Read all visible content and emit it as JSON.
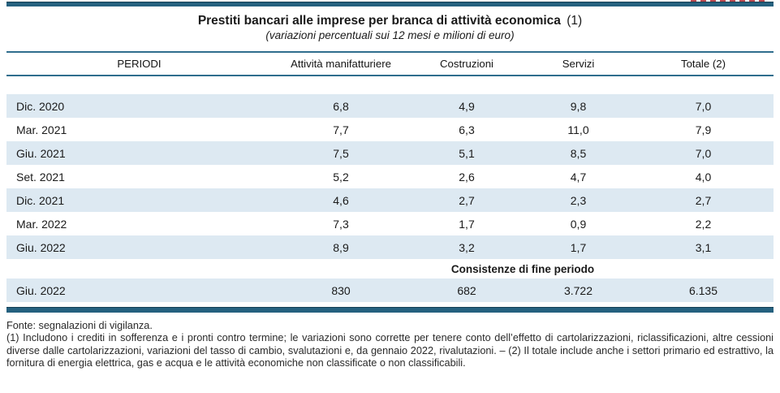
{
  "header": {
    "title": "Prestiti bancari alle imprese per branca di attività economica",
    "title_note_ref": "(1)",
    "subtitle": "(variazioni percentuali sui 12 mesi e milioni di euro)"
  },
  "table": {
    "columns": [
      "PERIODI",
      "Attività manifatturiere",
      "Costruzioni",
      "Servizi",
      "Totale (2)"
    ],
    "rows": [
      {
        "period": "Dic. 2020",
        "values": [
          "6,8",
          "4,9",
          "9,8",
          "7,0"
        ]
      },
      {
        "period": "Mar. 2021",
        "values": [
          "7,7",
          "6,3",
          "11,0",
          "7,9"
        ]
      },
      {
        "period": "Giu. 2021",
        "values": [
          "7,5",
          "5,1",
          "8,5",
          "7,0"
        ]
      },
      {
        "period": "Set. 2021",
        "values": [
          "5,2",
          "2,6",
          "4,7",
          "4,0"
        ]
      },
      {
        "period": "Dic. 2021",
        "values": [
          "4,6",
          "2,7",
          "2,3",
          "2,7"
        ]
      },
      {
        "period": "Mar. 2022",
        "values": [
          "7,3",
          "1,7",
          "0,9",
          "2,2"
        ]
      },
      {
        "period": "Giu. 2022",
        "values": [
          "8,9",
          "3,2",
          "1,7",
          "3,1"
        ]
      }
    ],
    "section_label": "Consistenze di fine periodo",
    "stock_row": {
      "period": "Giu. 2022",
      "values": [
        "830",
        "682",
        "3.722",
        "6.135"
      ]
    }
  },
  "footer": {
    "source": "Fonte: segnalazioni di vigilanza.",
    "note": "(1) Includono i crediti in sofferenza e i pronti contro termine; le variazioni sono corrette per tenere conto dell’effetto di cartolarizzazioni, riclassificazioni, altre cessioni diverse dalle cartolarizzazioni, variazioni del tasso di cambio, svalutazioni e, da gennaio 2022, rivalutazioni. – (2) Il totale include anche i settori primario ed estrattivo, la fornitura di energia elettrica, gas e acqua e le attività economiche non classificate o non classificabili."
  },
  "colors": {
    "rule_teal": "#25617f",
    "stripe_blue": "#dde9f2",
    "clipped_label_red": "#bb4a52"
  }
}
